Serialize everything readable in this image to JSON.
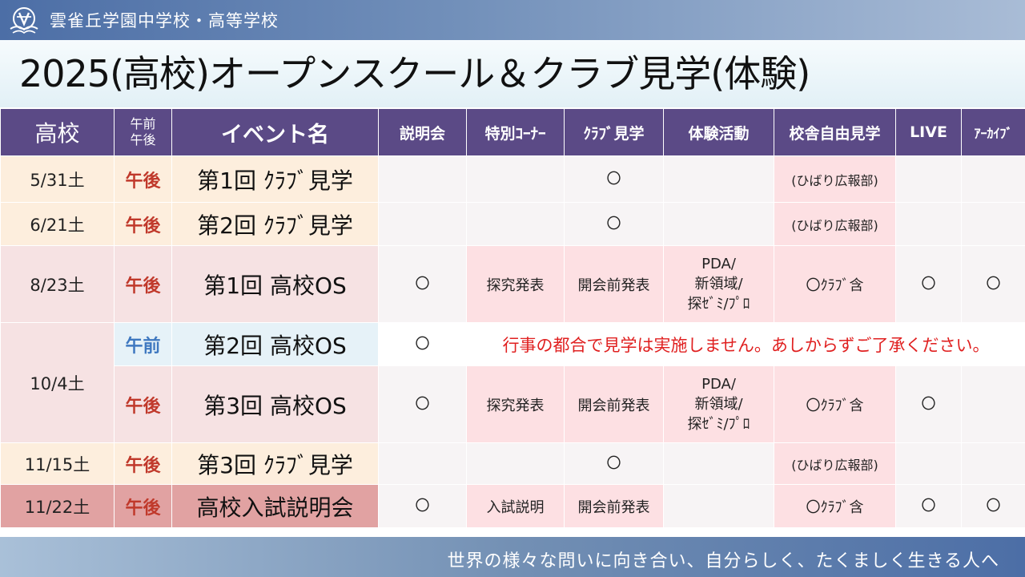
{
  "header": {
    "school_name": "雲雀丘学園中学校・高等学校",
    "logo_icon": "school-crest-icon"
  },
  "title": "2025(高校)オープンスクール＆クラブ見学(体験)",
  "table": {
    "headers": {
      "school": "高校",
      "ampm_line1": "午前",
      "ampm_line2": "午後",
      "event": "イベント名",
      "briefing": "説明会",
      "special": "特別ｺｰﾅｰ",
      "club": "ｸﾗﾌﾞ見学",
      "experience": "体験活動",
      "campus": "校舎自由見学",
      "live": "LIVE",
      "archive": "ｱｰｶｲﾌﾞ"
    },
    "rows": [
      {
        "date": "5/31土",
        "ampm": "午後",
        "event": "第1回 ｸﾗﾌﾞ見学",
        "club": "〇",
        "campus": "(ひばり広報部)"
      },
      {
        "date": "6/21土",
        "ampm": "午後",
        "event": "第2回 ｸﾗﾌﾞ見学",
        "club": "〇",
        "campus": "(ひばり広報部)"
      },
      {
        "date": "8/23土",
        "ampm": "午後",
        "event": "第1回 高校OS",
        "briefing": "〇",
        "special": "探究発表",
        "club": "開会前発表",
        "experience_lines": [
          "PDA/",
          "新領域/",
          "探ｾﾞﾐ/ﾌﾟﾛ"
        ],
        "campus": "〇ｸﾗﾌﾞ含",
        "live": "〇",
        "archive": "〇"
      },
      {
        "date": "10/4土",
        "ampm": "午前",
        "event": "第2回 高校OS",
        "briefing": "〇",
        "notice": "行事の都合で見学は実施しません。あしからずご了承ください。"
      },
      {
        "ampm": "午後",
        "event": "第3回 高校OS",
        "briefing": "〇",
        "special": "探究発表",
        "club": "開会前発表",
        "experience_lines": [
          "PDA/",
          "新領域/",
          "探ｾﾞﾐ/ﾌﾟﾛ"
        ],
        "campus": "〇ｸﾗﾌﾞ含",
        "live": "〇"
      },
      {
        "date": "11/15土",
        "ampm": "午後",
        "event": "第3回 ｸﾗﾌﾞ見学",
        "club": "〇",
        "campus": "(ひばり広報部)"
      },
      {
        "date": "11/22土",
        "ampm": "午後",
        "event": "高校入試説明会",
        "briefing": "〇",
        "special": "入試説明",
        "club": "開会前発表",
        "campus": "〇ｸﾗﾌﾞ含",
        "live": "〇",
        "archive": "〇"
      }
    ]
  },
  "footer": {
    "slogan": "世界の様々な問いに向き合い、自分らしく、たくましく生きる人へ"
  },
  "colors": {
    "header_purple": "#5b4a86",
    "pm_red": "#c0392b",
    "am_blue": "#3f78c0",
    "notice_red": "#e02020",
    "highlight_pink": "#fde0e3",
    "beige_row": "#fdeedd",
    "rose_row": "#e1a2a2"
  }
}
